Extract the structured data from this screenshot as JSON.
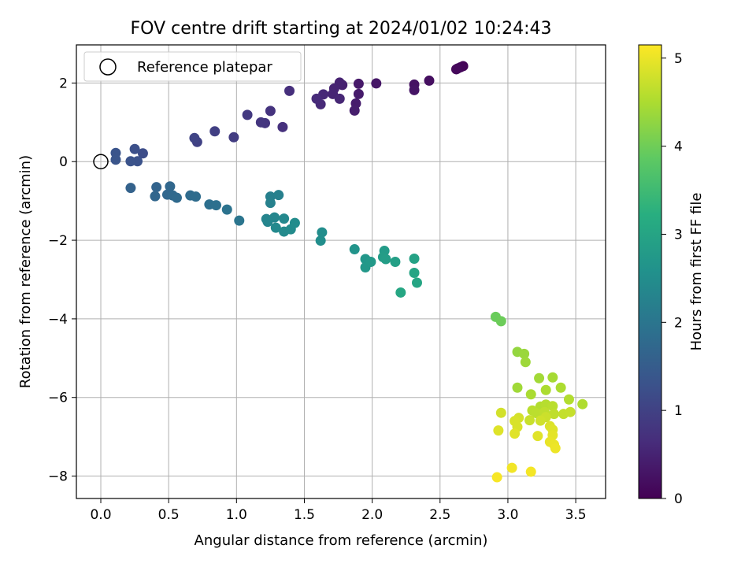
{
  "chart_data": {
    "type": "scatter",
    "title": "FOV centre drift starting at 2024/01/02 10:24:43",
    "xlabel": "Angular distance from reference (arcmin)",
    "ylabel": "Rotation from reference (arcmin)",
    "xlim": [
      -0.18,
      3.72
    ],
    "ylim": [
      -8.57,
      2.97
    ],
    "xticks": [
      0.0,
      0.5,
      1.0,
      1.5,
      2.0,
      2.5,
      3.0,
      3.5
    ],
    "xtick_labels": [
      "0.0",
      "0.5",
      "1.0",
      "1.5",
      "2.0",
      "2.5",
      "3.0",
      "3.5"
    ],
    "yticks": [
      -8,
      -6,
      -4,
      -2,
      0,
      2
    ],
    "ytick_labels": [
      "−8",
      "−6",
      "−4",
      "−2",
      "0",
      "2"
    ],
    "grid": true,
    "legend": {
      "position": "top-left",
      "entries": [
        "Reference platepar"
      ]
    },
    "reference_point": {
      "x": 0,
      "y": 0
    },
    "colorbar": {
      "label": "Hours from first FF file",
      "range": [
        0,
        5.15
      ],
      "ticks": [
        0,
        1,
        2,
        3,
        4,
        5
      ],
      "tick_labels": [
        "0",
        "1",
        "2",
        "3",
        "4",
        "5"
      ],
      "colormap": "viridis"
    },
    "points": [
      {
        "x": 2.67,
        "y": 2.43,
        "c": 0.05
      },
      {
        "x": 2.65,
        "y": 2.4,
        "c": 0.08
      },
      {
        "x": 2.63,
        "y": 2.37,
        "c": 0.1
      },
      {
        "x": 2.62,
        "y": 2.35,
        "c": 0.12
      },
      {
        "x": 2.42,
        "y": 2.06,
        "c": 0.2
      },
      {
        "x": 2.31,
        "y": 1.96,
        "c": 0.25
      },
      {
        "x": 2.31,
        "y": 1.82,
        "c": 0.28
      },
      {
        "x": 2.03,
        "y": 1.99,
        "c": 0.3
      },
      {
        "x": 1.9,
        "y": 1.98,
        "c": 0.35
      },
      {
        "x": 1.9,
        "y": 1.72,
        "c": 0.38
      },
      {
        "x": 1.88,
        "y": 1.48,
        "c": 0.4
      },
      {
        "x": 1.87,
        "y": 1.3,
        "c": 0.42
      },
      {
        "x": 1.78,
        "y": 1.95,
        "c": 0.45
      },
      {
        "x": 1.76,
        "y": 2.01,
        "c": 0.48
      },
      {
        "x": 1.72,
        "y": 1.86,
        "c": 0.5
      },
      {
        "x": 1.71,
        "y": 1.72,
        "c": 0.52
      },
      {
        "x": 1.76,
        "y": 1.6,
        "c": 0.55
      },
      {
        "x": 1.64,
        "y": 1.71,
        "c": 0.58
      },
      {
        "x": 1.62,
        "y": 1.46,
        "c": 0.6
      },
      {
        "x": 1.59,
        "y": 1.6,
        "c": 0.62
      },
      {
        "x": 1.39,
        "y": 1.8,
        "c": 0.68
      },
      {
        "x": 1.34,
        "y": 0.88,
        "c": 0.72
      },
      {
        "x": 1.25,
        "y": 1.29,
        "c": 0.75
      },
      {
        "x": 1.21,
        "y": 0.98,
        "c": 0.78
      },
      {
        "x": 1.18,
        "y": 1.0,
        "c": 0.8
      },
      {
        "x": 1.08,
        "y": 1.19,
        "c": 0.85
      },
      {
        "x": 0.98,
        "y": 0.62,
        "c": 0.9
      },
      {
        "x": 0.84,
        "y": 0.77,
        "c": 0.95
      },
      {
        "x": 0.71,
        "y": 0.5,
        "c": 1.0
      },
      {
        "x": 0.69,
        "y": 0.6,
        "c": 1.05
      },
      {
        "x": 0.31,
        "y": 0.21,
        "c": 1.2
      },
      {
        "x": 0.25,
        "y": 0.32,
        "c": 1.25
      },
      {
        "x": 0.27,
        "y": 0.01,
        "c": 1.28
      },
      {
        "x": 0.22,
        "y": 0.01,
        "c": 1.3
      },
      {
        "x": 0.11,
        "y": 0.22,
        "c": 1.32
      },
      {
        "x": 0.11,
        "y": 0.05,
        "c": 1.35
      },
      {
        "x": 0.22,
        "y": -0.67,
        "c": 1.6
      },
      {
        "x": 0.41,
        "y": -0.65,
        "c": 1.65
      },
      {
        "x": 0.4,
        "y": -0.88,
        "c": 1.68
      },
      {
        "x": 0.51,
        "y": -0.63,
        "c": 1.7
      },
      {
        "x": 0.49,
        "y": -0.84,
        "c": 1.72
      },
      {
        "x": 0.53,
        "y": -0.86,
        "c": 1.75
      },
      {
        "x": 0.56,
        "y": -0.92,
        "c": 1.78
      },
      {
        "x": 0.66,
        "y": -0.86,
        "c": 1.8
      },
      {
        "x": 0.7,
        "y": -0.89,
        "c": 1.82
      },
      {
        "x": 0.8,
        "y": -1.09,
        "c": 1.88
      },
      {
        "x": 0.85,
        "y": -1.11,
        "c": 1.9
      },
      {
        "x": 0.93,
        "y": -1.22,
        "c": 1.95
      },
      {
        "x": 1.02,
        "y": -1.5,
        "c": 2.0
      },
      {
        "x": 1.25,
        "y": -0.89,
        "c": 2.2
      },
      {
        "x": 1.31,
        "y": -0.85,
        "c": 2.22
      },
      {
        "x": 1.25,
        "y": -1.05,
        "c": 2.25
      },
      {
        "x": 1.22,
        "y": -1.46,
        "c": 2.3
      },
      {
        "x": 1.23,
        "y": -1.53,
        "c": 2.32
      },
      {
        "x": 1.28,
        "y": -1.42,
        "c": 2.35
      },
      {
        "x": 1.35,
        "y": -1.45,
        "c": 2.38
      },
      {
        "x": 1.29,
        "y": -1.68,
        "c": 2.4
      },
      {
        "x": 1.35,
        "y": -1.78,
        "c": 2.42
      },
      {
        "x": 1.4,
        "y": -1.72,
        "c": 2.45
      },
      {
        "x": 1.43,
        "y": -1.56,
        "c": 2.48
      },
      {
        "x": 1.63,
        "y": -1.8,
        "c": 2.5
      },
      {
        "x": 1.62,
        "y": -2.01,
        "c": 2.52
      },
      {
        "x": 1.87,
        "y": -2.23,
        "c": 2.65
      },
      {
        "x": 1.95,
        "y": -2.48,
        "c": 2.7
      },
      {
        "x": 1.95,
        "y": -2.69,
        "c": 2.72
      },
      {
        "x": 1.99,
        "y": -2.55,
        "c": 2.75
      },
      {
        "x": 2.09,
        "y": -2.27,
        "c": 2.8
      },
      {
        "x": 2.08,
        "y": -2.43,
        "c": 2.82
      },
      {
        "x": 2.1,
        "y": -2.48,
        "c": 2.85
      },
      {
        "x": 2.17,
        "y": -2.55,
        "c": 2.88
      },
      {
        "x": 2.31,
        "y": -2.47,
        "c": 2.95
      },
      {
        "x": 2.31,
        "y": -2.83,
        "c": 3.0
      },
      {
        "x": 2.33,
        "y": -3.08,
        "c": 3.02
      },
      {
        "x": 2.21,
        "y": -3.33,
        "c": 3.05
      },
      {
        "x": 2.91,
        "y": -3.95,
        "c": 3.95
      },
      {
        "x": 2.95,
        "y": -4.06,
        "c": 3.98
      },
      {
        "x": 3.07,
        "y": -4.84,
        "c": 4.3
      },
      {
        "x": 3.12,
        "y": -4.89,
        "c": 4.35
      },
      {
        "x": 3.13,
        "y": -5.1,
        "c": 4.38
      },
      {
        "x": 3.07,
        "y": -5.75,
        "c": 4.4
      },
      {
        "x": 3.23,
        "y": -5.51,
        "c": 4.42
      },
      {
        "x": 3.33,
        "y": -5.49,
        "c": 4.45
      },
      {
        "x": 3.17,
        "y": -5.92,
        "c": 4.48
      },
      {
        "x": 3.28,
        "y": -5.81,
        "c": 4.5
      },
      {
        "x": 3.39,
        "y": -5.75,
        "c": 4.5
      },
      {
        "x": 3.55,
        "y": -6.17,
        "c": 4.52
      },
      {
        "x": 3.45,
        "y": -6.05,
        "c": 4.55
      },
      {
        "x": 3.24,
        "y": -6.23,
        "c": 4.55
      },
      {
        "x": 3.28,
        "y": -6.18,
        "c": 4.58
      },
      {
        "x": 3.33,
        "y": -6.22,
        "c": 4.6
      },
      {
        "x": 3.18,
        "y": -6.33,
        "c": 4.6
      },
      {
        "x": 3.21,
        "y": -6.4,
        "c": 4.62
      },
      {
        "x": 3.27,
        "y": -6.37,
        "c": 4.65
      },
      {
        "x": 3.34,
        "y": -6.42,
        "c": 4.65
      },
      {
        "x": 3.41,
        "y": -6.42,
        "c": 4.68
      },
      {
        "x": 3.46,
        "y": -6.37,
        "c": 4.7
      },
      {
        "x": 3.16,
        "y": -6.58,
        "c": 4.72
      },
      {
        "x": 3.28,
        "y": -6.5,
        "c": 4.75
      },
      {
        "x": 3.24,
        "y": -6.59,
        "c": 4.78
      },
      {
        "x": 2.95,
        "y": -6.39,
        "c": 4.8
      },
      {
        "x": 3.08,
        "y": -6.52,
        "c": 4.82
      },
      {
        "x": 3.05,
        "y": -6.6,
        "c": 4.85
      },
      {
        "x": 3.07,
        "y": -6.75,
        "c": 4.85
      },
      {
        "x": 3.31,
        "y": -6.73,
        "c": 4.88
      },
      {
        "x": 3.33,
        "y": -6.82,
        "c": 4.9
      },
      {
        "x": 2.93,
        "y": -6.84,
        "c": 4.9
      },
      {
        "x": 3.05,
        "y": -6.92,
        "c": 4.92
      },
      {
        "x": 3.22,
        "y": -6.98,
        "c": 4.92
      },
      {
        "x": 3.33,
        "y": -6.96,
        "c": 4.95
      },
      {
        "x": 3.31,
        "y": -7.13,
        "c": 4.98
      },
      {
        "x": 3.34,
        "y": -7.2,
        "c": 5.0
      },
      {
        "x": 3.35,
        "y": -7.29,
        "c": 5.02
      },
      {
        "x": 3.03,
        "y": -7.79,
        "c": 5.05
      },
      {
        "x": 3.17,
        "y": -7.89,
        "c": 5.08
      },
      {
        "x": 2.92,
        "y": -8.03,
        "c": 5.1
      }
    ]
  }
}
